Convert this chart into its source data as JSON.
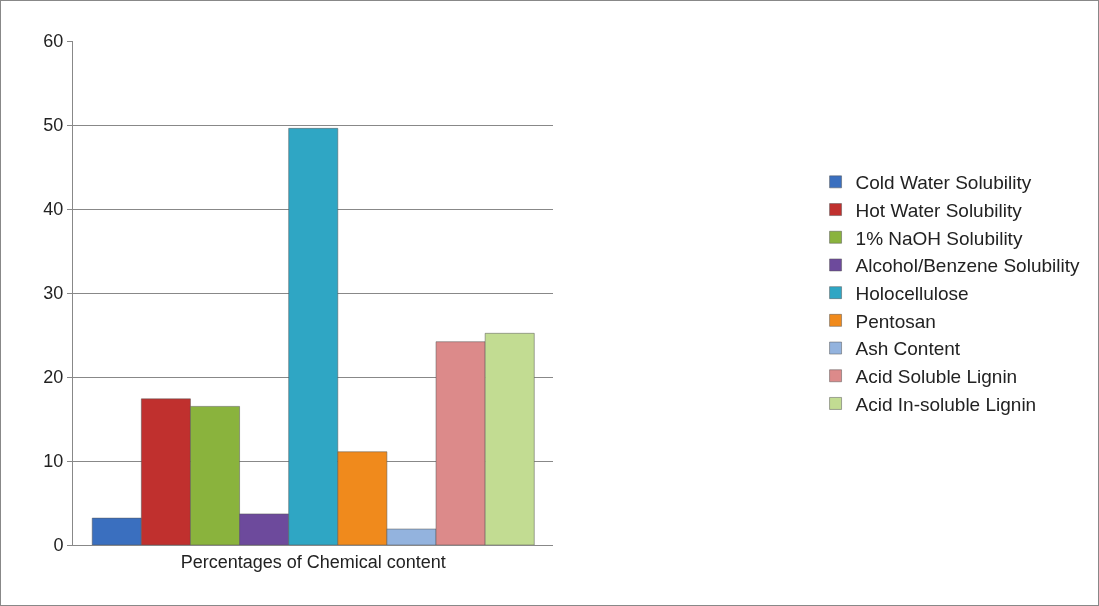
{
  "chart_data": {
    "type": "bar",
    "categories": [
      "Percentages of Chemical content"
    ],
    "series": [
      {
        "name": "Cold Water Solubility",
        "color": "#3a6fbf",
        "values": [
          3.2
        ]
      },
      {
        "name": "Hot Water Solubility",
        "color": "#c0302e",
        "values": [
          17.4
        ]
      },
      {
        "name": "1% NaOH Solubility",
        "color": "#8ab33d",
        "values": [
          16.5
        ]
      },
      {
        "name": "Alcohol/Benzene Solubility",
        "color": "#6d4a9c",
        "values": [
          3.7
        ]
      },
      {
        "name": "Holocellulose",
        "color": "#2fa6c4",
        "values": [
          49.6
        ]
      },
      {
        "name": "Pentosan",
        "color": "#f08a1c",
        "values": [
          11.1
        ]
      },
      {
        "name": "Ash Content",
        "color": "#93b3de",
        "values": [
          1.9
        ]
      },
      {
        "name": "Acid Soluble Lignin",
        "color": "#dc8a8a",
        "values": [
          24.2
        ]
      },
      {
        "name": "Acid In-soluble Lignin",
        "color": "#c2dc92",
        "values": [
          25.2
        ]
      }
    ],
    "ylim": [
      0,
      60
    ],
    "yticks": [
      0,
      10,
      20,
      30,
      40,
      50,
      60
    ],
    "grid": "y",
    "legend": "right"
  }
}
